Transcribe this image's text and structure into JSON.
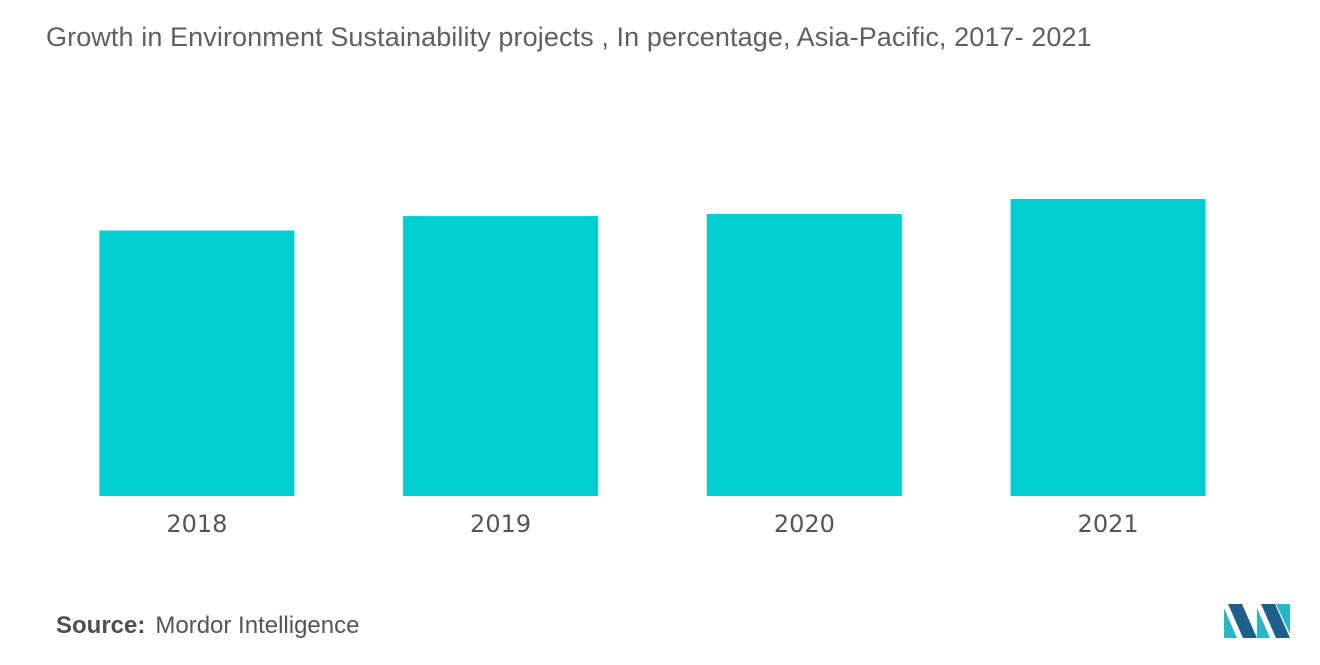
{
  "chart_data": {
    "type": "bar",
    "title": "Growth in Environment Sustainability projects  , In percentage, Asia-Pacific, 2017- 2021",
    "categories": [
      "2018",
      "2019",
      "2020",
      "2021"
    ],
    "values": [
      88.5,
      93.3,
      94.0,
      99.0
    ],
    "ylim": [
      0,
      100
    ],
    "grid": false,
    "legend": "none",
    "bar_color": "#00ced1"
  },
  "source": {
    "label": "Source:",
    "text": "Mordor Intelligence"
  },
  "logo": {
    "icon": "mordor-intelligence-logo-icon",
    "colors": [
      "#1f5f8b",
      "#29b6c6"
    ]
  }
}
